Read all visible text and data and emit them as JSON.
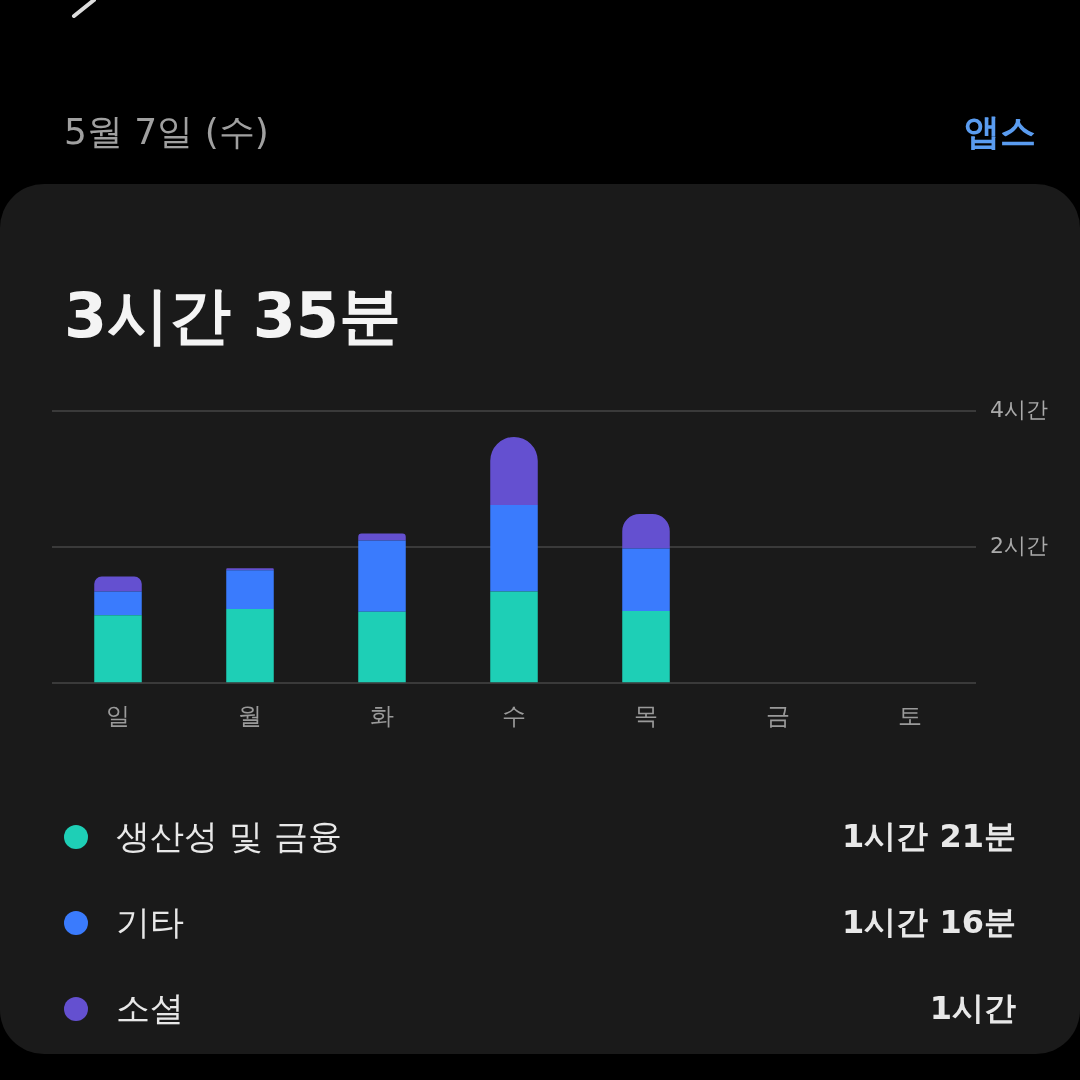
{
  "chart_data": {
    "type": "bar",
    "title": "3시간 35분",
    "subtitle": "5월 7일 (수)",
    "categories": [
      "일",
      "월",
      "화",
      "수",
      "목",
      "금",
      "토"
    ],
    "stacked": true,
    "series": [
      {
        "name": "생산성 및 금융",
        "color": "#1ecfb6",
        "values": [
          1.0,
          1.09,
          1.05,
          1.35,
          1.06,
          null,
          null
        ]
      },
      {
        "name": "기타",
        "color": "#3a7bfd",
        "values": [
          0.35,
          0.57,
          1.05,
          1.27,
          0.92,
          null,
          null
        ]
      },
      {
        "name": "소셜",
        "color": "#6450d0",
        "values": [
          0.22,
          0.03,
          0.1,
          1.0,
          0.51,
          null,
          null
        ]
      }
    ],
    "ylim": [
      0,
      4
    ],
    "yticks": [
      {
        "value": 0,
        "label": null
      },
      {
        "value": 2,
        "label": "2시간"
      },
      {
        "value": 4,
        "label": "4시간"
      }
    ],
    "grid": "y",
    "legend": "bottom",
    "annotations": [
      "앱스",
      "1시간 21분",
      "1시간 16분",
      "1시간"
    ]
  }
}
